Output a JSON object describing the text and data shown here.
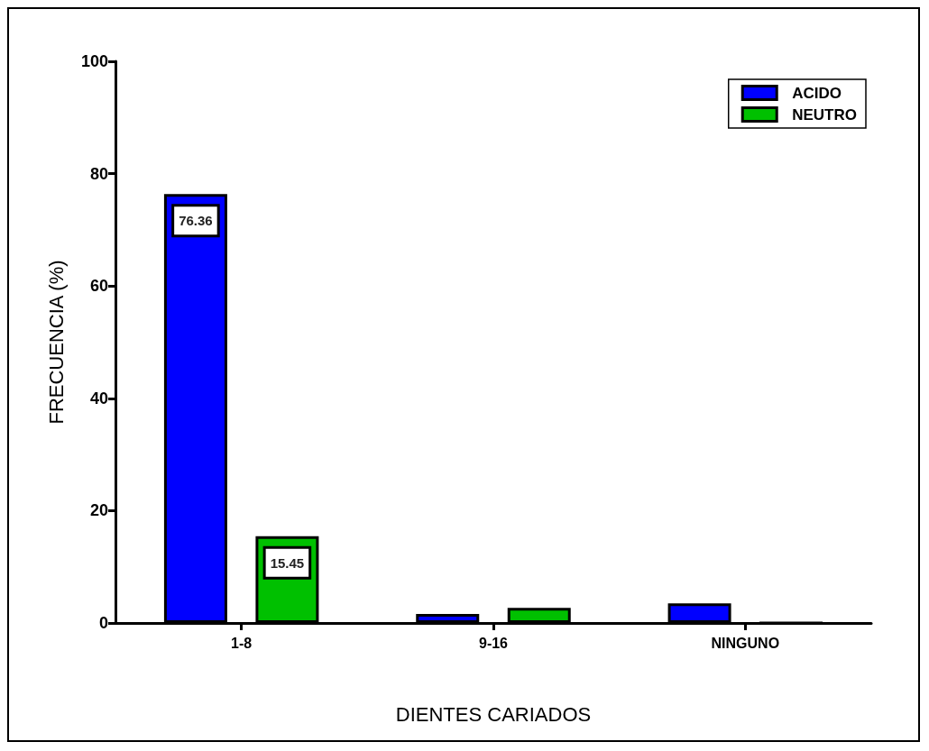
{
  "chart_data": {
    "type": "bar",
    "xlabel": "DIENTES CARIADOS",
    "ylabel": "FRECUENCIA (%)",
    "categories": [
      "1-8",
      "9-16",
      "NINGUNO"
    ],
    "series": [
      {
        "name": "ACIDO",
        "color": "#0000ff",
        "values": [
          76.36,
          1.6,
          3.5
        ],
        "value_labels": [
          "76.36",
          null,
          null
        ]
      },
      {
        "name": "NEUTRO",
        "color": "#00c000",
        "values": [
          15.45,
          2.7,
          0
        ],
        "value_labels": [
          "15.45",
          null,
          null
        ]
      }
    ],
    "ylim": [
      0,
      100
    ],
    "yticks": [
      0,
      20,
      40,
      60,
      80,
      100
    ],
    "grid": false,
    "legend": "top right"
  }
}
